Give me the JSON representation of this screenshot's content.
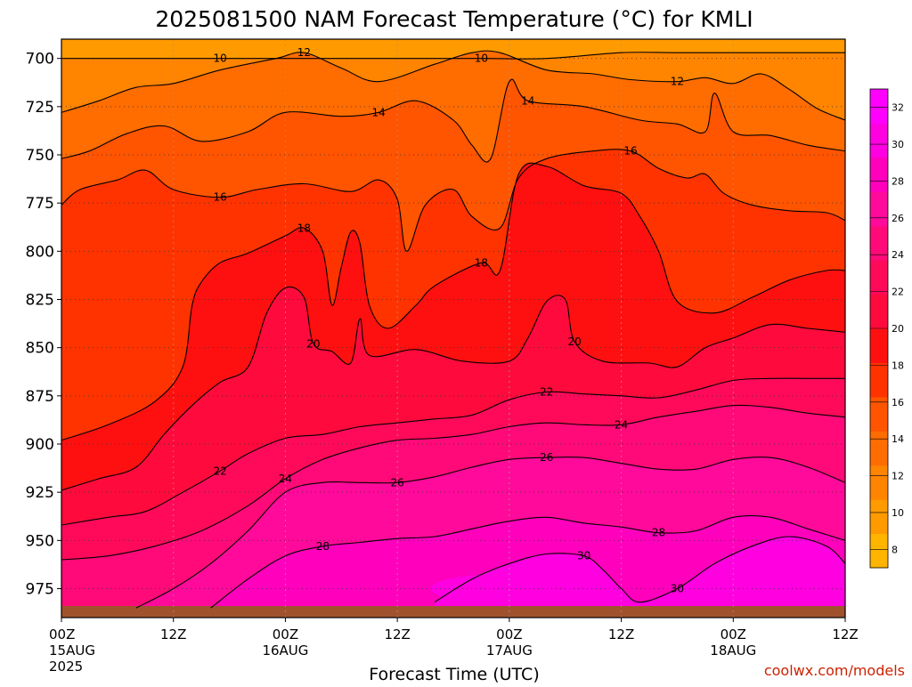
{
  "chart_data": {
    "type": "heatmap",
    "title": "2025081500 NAM Forecast Temperature (°C) for KMLI",
    "xlabel": "Forecast Time (UTC)",
    "ylabel": "",
    "credit": "coolwx.com/models",
    "y_axis": {
      "quantity": "pressure (hPa)",
      "inverted": true,
      "range": [
        690,
        990
      ],
      "ticks": [
        "700",
        "725",
        "750",
        "775",
        "800",
        "825",
        "850",
        "875",
        "900",
        "925",
        "950",
        "975"
      ]
    },
    "x_axis": {
      "quantity": "forecast valid time (hours from 00Z 15AUG 2025)",
      "range": [
        0,
        84
      ],
      "ticks": [
        {
          "hour": 0,
          "label": "00Z",
          "sub": "15AUG",
          "sub2": "2025"
        },
        {
          "hour": 12,
          "label": "12Z",
          "sub": "",
          "sub2": ""
        },
        {
          "hour": 24,
          "label": "00Z",
          "sub": "16AUG",
          "sub2": ""
        },
        {
          "hour": 36,
          "label": "12Z",
          "sub": "",
          "sub2": ""
        },
        {
          "hour": 48,
          "label": "00Z",
          "sub": "17AUG",
          "sub2": ""
        },
        {
          "hour": 60,
          "label": "12Z",
          "sub": "",
          "sub2": ""
        },
        {
          "hour": 72,
          "label": "00Z",
          "sub": "18AUG",
          "sub2": ""
        },
        {
          "hour": 84,
          "label": "12Z",
          "sub": "",
          "sub2": ""
        }
      ]
    },
    "grid": true,
    "colorbar": {
      "ticks": [
        "8",
        "10",
        "12",
        "14",
        "16",
        "18",
        "20",
        "22",
        "24",
        "26",
        "28",
        "30",
        "32"
      ],
      "min": 7,
      "max": 33,
      "step": 2,
      "colors": [
        "#ffb400",
        "#ff9a00",
        "#ff8400",
        "#ff6c00",
        "#ff5400",
        "#ff3300",
        "#ff1010",
        "#ff0a3c",
        "#ff0a5a",
        "#ff0a78",
        "#ff0a9a",
        "#ff00bc",
        "#ff00e0",
        "#ff00ff"
      ]
    },
    "ground_color": "#a0522d",
    "isotherms": [
      {
        "value": 10,
        "label": "10",
        "pts": [
          [
            0,
            700
          ],
          [
            6,
            700
          ],
          [
            12,
            700
          ],
          [
            17,
            700
          ],
          [
            24,
            700
          ],
          [
            29,
            700
          ],
          [
            33,
            700
          ],
          [
            36,
            700
          ],
          [
            45,
            700
          ],
          [
            52,
            700
          ],
          [
            60,
            697
          ],
          [
            66,
            697
          ],
          [
            72,
            697
          ],
          [
            78,
            697
          ],
          [
            84,
            697
          ]
        ]
      },
      {
        "value": 12,
        "label": "12",
        "pts": [
          [
            0,
            728
          ],
          [
            4,
            722
          ],
          [
            8,
            715
          ],
          [
            12,
            713
          ],
          [
            17,
            706
          ],
          [
            23,
            700
          ],
          [
            26,
            697
          ],
          [
            30,
            705
          ],
          [
            34,
            712
          ],
          [
            40,
            703
          ],
          [
            44,
            697
          ],
          [
            47,
            697
          ],
          [
            52,
            706
          ],
          [
            57,
            708
          ],
          [
            61,
            711
          ],
          [
            66,
            712
          ],
          [
            69,
            710
          ],
          [
            72,
            713
          ],
          [
            75,
            708
          ],
          [
            78,
            716
          ],
          [
            81,
            726
          ],
          [
            84,
            732
          ]
        ]
      },
      {
        "value": 14,
        "label": "14",
        "pts": [
          [
            0,
            752
          ],
          [
            3,
            748
          ],
          [
            7,
            739
          ],
          [
            11,
            735
          ],
          [
            15,
            743
          ],
          [
            20,
            738
          ],
          [
            24,
            728
          ],
          [
            30,
            730
          ],
          [
            34,
            728
          ],
          [
            38,
            722
          ],
          [
            42,
            732
          ],
          [
            44,
            745
          ],
          [
            46,
            752
          ],
          [
            48,
            712
          ],
          [
            50,
            722
          ],
          [
            56,
            725
          ],
          [
            62,
            732
          ],
          [
            66,
            734
          ],
          [
            69,
            738
          ],
          [
            70,
            718
          ],
          [
            72,
            738
          ],
          [
            76,
            740
          ],
          [
            80,
            745
          ],
          [
            84,
            748
          ]
        ]
      },
      {
        "value": 16,
        "label": "16",
        "pts": [
          [
            0,
            776
          ],
          [
            2,
            768
          ],
          [
            6,
            763
          ],
          [
            9,
            758
          ],
          [
            12,
            768
          ],
          [
            17,
            772
          ],
          [
            21,
            768
          ],
          [
            26,
            765
          ],
          [
            31,
            769
          ],
          [
            34,
            763
          ],
          [
            36,
            773
          ],
          [
            37,
            800
          ],
          [
            39,
            776
          ],
          [
            42,
            768
          ],
          [
            44,
            782
          ],
          [
            47,
            788
          ],
          [
            49,
            762
          ],
          [
            52,
            752
          ],
          [
            57,
            748
          ],
          [
            61,
            748
          ],
          [
            64,
            757
          ],
          [
            67,
            762
          ],
          [
            69,
            760
          ],
          [
            71,
            770
          ],
          [
            74,
            776
          ],
          [
            78,
            779
          ],
          [
            82,
            780
          ],
          [
            84,
            784
          ]
        ]
      },
      {
        "value": 18,
        "label": "18",
        "pts": [
          [
            0,
            898
          ],
          [
            5,
            890
          ],
          [
            10,
            878
          ],
          [
            13,
            860
          ],
          [
            14,
            828
          ],
          [
            15,
            816
          ],
          [
            17,
            806
          ],
          [
            20,
            801
          ],
          [
            24,
            792
          ],
          [
            26,
            788
          ],
          [
            28,
            800
          ],
          [
            29,
            828
          ],
          [
            30,
            808
          ],
          [
            31,
            790
          ],
          [
            32,
            796
          ],
          [
            33,
            828
          ],
          [
            35,
            840
          ],
          [
            38,
            828
          ],
          [
            40,
            818
          ],
          [
            45,
            806
          ],
          [
            47,
            810
          ],
          [
            49,
            760
          ],
          [
            52,
            756
          ],
          [
            56,
            766
          ],
          [
            60,
            770
          ],
          [
            62,
            782
          ],
          [
            64,
            800
          ],
          [
            66,
            826
          ],
          [
            70,
            832
          ],
          [
            74,
            824
          ],
          [
            78,
            815
          ],
          [
            82,
            810
          ],
          [
            84,
            810
          ]
        ]
      },
      {
        "value": 20,
        "label": "20",
        "pts": [
          [
            0,
            924
          ],
          [
            4,
            918
          ],
          [
            8,
            912
          ],
          [
            11,
            895
          ],
          [
            14,
            880
          ],
          [
            17,
            868
          ],
          [
            20,
            860
          ],
          [
            22,
            832
          ],
          [
            24,
            819
          ],
          [
            26,
            824
          ],
          [
            27,
            848
          ],
          [
            29,
            852
          ],
          [
            31,
            858
          ],
          [
            32,
            835
          ],
          [
            33,
            854
          ],
          [
            38,
            851
          ],
          [
            43,
            857
          ],
          [
            48,
            857
          ],
          [
            50,
            845
          ],
          [
            52,
            826
          ],
          [
            54,
            825
          ],
          [
            55,
            847
          ],
          [
            58,
            857
          ],
          [
            63,
            858
          ],
          [
            66,
            860
          ],
          [
            69,
            850
          ],
          [
            72,
            845
          ],
          [
            76,
            838
          ],
          [
            80,
            840
          ],
          [
            84,
            842
          ]
        ]
      },
      {
        "value": 22,
        "label": "22",
        "pts": [
          [
            0,
            942
          ],
          [
            5,
            938
          ],
          [
            9,
            935
          ],
          [
            13,
            925
          ],
          [
            17,
            914
          ],
          [
            20,
            905
          ],
          [
            24,
            897
          ],
          [
            28,
            895
          ],
          [
            32,
            891
          ],
          [
            36,
            889
          ],
          [
            40,
            887
          ],
          [
            44,
            885
          ],
          [
            48,
            877
          ],
          [
            52,
            873
          ],
          [
            56,
            874
          ],
          [
            60,
            875
          ],
          [
            64,
            876
          ],
          [
            68,
            872
          ],
          [
            72,
            867
          ],
          [
            76,
            866
          ],
          [
            80,
            866
          ],
          [
            84,
            866
          ]
        ]
      },
      {
        "value": 24,
        "label": "24",
        "pts": [
          [
            0,
            960
          ],
          [
            5,
            958
          ],
          [
            10,
            953
          ],
          [
            15,
            945
          ],
          [
            20,
            932
          ],
          [
            24,
            918
          ],
          [
            28,
            908
          ],
          [
            32,
            902
          ],
          [
            36,
            898
          ],
          [
            40,
            897
          ],
          [
            44,
            895
          ],
          [
            48,
            891
          ],
          [
            52,
            889
          ],
          [
            56,
            890
          ],
          [
            60,
            890
          ],
          [
            64,
            886
          ],
          [
            68,
            883
          ],
          [
            72,
            880
          ],
          [
            76,
            881
          ],
          [
            80,
            884
          ],
          [
            84,
            886
          ]
        ]
      },
      {
        "value": 26,
        "label": "26",
        "pts": [
          [
            8,
            985
          ],
          [
            12,
            975
          ],
          [
            16,
            962
          ],
          [
            20,
            945
          ],
          [
            24,
            925
          ],
          [
            28,
            920
          ],
          [
            32,
            920
          ],
          [
            36,
            920
          ],
          [
            40,
            917
          ],
          [
            44,
            912
          ],
          [
            48,
            908
          ],
          [
            52,
            907
          ],
          [
            56,
            907
          ],
          [
            60,
            910
          ],
          [
            64,
            913
          ],
          [
            68,
            913
          ],
          [
            72,
            908
          ],
          [
            76,
            907
          ],
          [
            80,
            912
          ],
          [
            84,
            920
          ]
        ]
      },
      {
        "value": 28,
        "label": "28",
        "pts": [
          [
            16,
            985
          ],
          [
            20,
            970
          ],
          [
            24,
            958
          ],
          [
            28,
            953
          ],
          [
            32,
            951
          ],
          [
            36,
            949
          ],
          [
            40,
            948
          ],
          [
            44,
            944
          ],
          [
            48,
            940
          ],
          [
            52,
            938
          ],
          [
            56,
            941
          ],
          [
            60,
            943
          ],
          [
            64,
            946
          ],
          [
            68,
            945
          ],
          [
            72,
            938
          ],
          [
            76,
            938
          ],
          [
            80,
            944
          ],
          [
            84,
            950
          ]
        ]
      },
      {
        "value": 30,
        "label": "30",
        "pts": [
          [
            40,
            982
          ],
          [
            44,
            970
          ],
          [
            48,
            962
          ],
          [
            52,
            957
          ],
          [
            56,
            958
          ],
          [
            58,
            965
          ],
          [
            60,
            975
          ],
          [
            62,
            982
          ],
          [
            66,
            975
          ],
          [
            70,
            962
          ],
          [
            74,
            953
          ],
          [
            78,
            948
          ],
          [
            82,
            953
          ],
          [
            84,
            962
          ]
        ]
      }
    ]
  }
}
